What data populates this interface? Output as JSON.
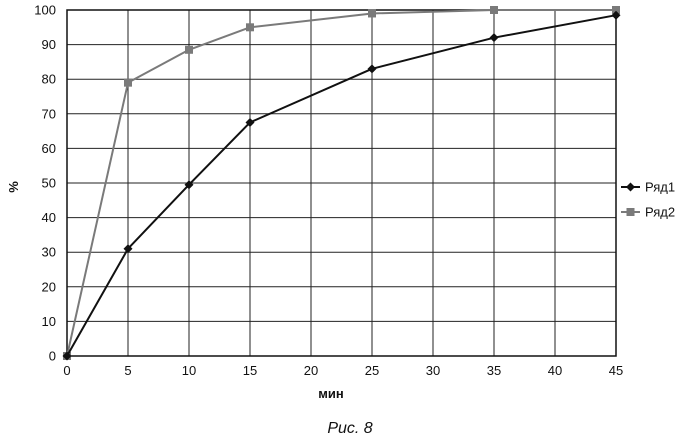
{
  "chart_data": {
    "type": "line",
    "caption": "Рис. 8",
    "xlabel": "мин",
    "ylabel": "%",
    "x": [
      0,
      5,
      10,
      15,
      25,
      35,
      45
    ],
    "xlim": [
      0,
      45
    ],
    "ylim": [
      0,
      100
    ],
    "x_ticks": [
      0,
      5,
      10,
      15,
      20,
      25,
      30,
      35,
      40,
      45
    ],
    "y_ticks": [
      0,
      10,
      20,
      30,
      40,
      50,
      60,
      70,
      80,
      90,
      100
    ],
    "grid": true,
    "legend_position": "right",
    "series": [
      {
        "name": "Ряд1",
        "values": [
          0,
          31,
          49.5,
          67.5,
          83,
          92,
          98.5
        ],
        "color": "#111111",
        "marker": "diamond"
      },
      {
        "name": "Ряд2",
        "values": [
          0,
          79,
          88.5,
          95,
          99,
          100,
          100
        ],
        "color": "#7a7a7a",
        "marker": "square"
      }
    ]
  }
}
